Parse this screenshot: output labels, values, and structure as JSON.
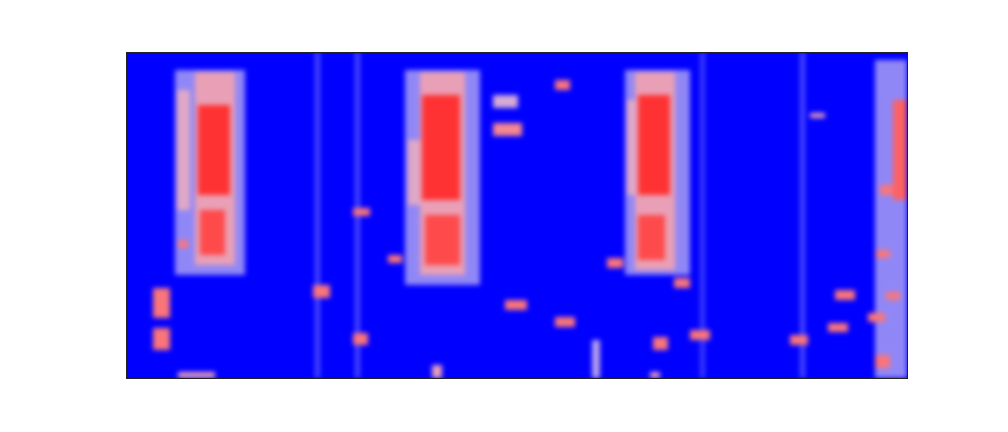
{
  "chart_data": {
    "type": "heatmap",
    "tick_labels": false,
    "xlim": [
      0,
      781
    ],
    "ylim": [
      0,
      326
    ],
    "zlim": [
      0,
      1
    ],
    "cells": [
      {
        "x1": 189,
        "x2": 194,
        "y1": 0,
        "y2": 326,
        "v": 0.15
      },
      {
        "x1": 229,
        "x2": 234,
        "y1": 0,
        "y2": 326,
        "v": 0.15
      },
      {
        "x1": 574,
        "x2": 579,
        "y1": 0,
        "y2": 326,
        "v": 0.12
      },
      {
        "x1": 674,
        "x2": 679,
        "y1": 0,
        "y2": 326,
        "v": 0.15
      },
      {
        "x1": 49,
        "x2": 119,
        "y1": 103,
        "y2": 308,
        "v": 0.3
      },
      {
        "x1": 279,
        "x2": 354,
        "y1": 93,
        "y2": 308,
        "v": 0.3
      },
      {
        "x1": 499,
        "x2": 564,
        "y1": 103,
        "y2": 308,
        "v": 0.3
      },
      {
        "x1": 749,
        "x2": 781,
        "y1": 0,
        "y2": 318,
        "v": 0.3
      },
      {
        "x1": 69,
        "x2": 109,
        "y1": 113,
        "y2": 306,
        "v": 0.6
      },
      {
        "x1": 51,
        "x2": 64,
        "y1": 168,
        "y2": 288,
        "v": 0.55
      },
      {
        "x1": 72,
        "x2": 104,
        "y1": 183,
        "y2": 273,
        "v": 0.9
      },
      {
        "x1": 74,
        "x2": 99,
        "y1": 123,
        "y2": 168,
        "v": 0.85
      },
      {
        "x1": 294,
        "x2": 339,
        "y1": 103,
        "y2": 306,
        "v": 0.6
      },
      {
        "x1": 282,
        "x2": 294,
        "y1": 173,
        "y2": 238,
        "v": 0.55
      },
      {
        "x1": 296,
        "x2": 334,
        "y1": 178,
        "y2": 283,
        "v": 0.9
      },
      {
        "x1": 299,
        "x2": 334,
        "y1": 113,
        "y2": 163,
        "v": 0.85
      },
      {
        "x1": 509,
        "x2": 549,
        "y1": 108,
        "y2": 306,
        "v": 0.6
      },
      {
        "x1": 501,
        "x2": 512,
        "y1": 183,
        "y2": 278,
        "v": 0.55
      },
      {
        "x1": 512,
        "x2": 544,
        "y1": 183,
        "y2": 283,
        "v": 0.9
      },
      {
        "x1": 512,
        "x2": 539,
        "y1": 118,
        "y2": 163,
        "v": 0.85
      },
      {
        "x1": 767,
        "x2": 781,
        "y1": 178,
        "y2": 278,
        "v": 0.8
      },
      {
        "x1": 27,
        "x2": 44,
        "y1": 60,
        "y2": 90,
        "v": 0.75
      },
      {
        "x1": 27,
        "x2": 44,
        "y1": 28,
        "y2": 50,
        "v": 0.75
      },
      {
        "x1": 52,
        "x2": 62,
        "y1": 130,
        "y2": 138,
        "v": 0.75
      },
      {
        "x1": 187,
        "x2": 204,
        "y1": 80,
        "y2": 93,
        "v": 0.75
      },
      {
        "x1": 227,
        "x2": 244,
        "y1": 162,
        "y2": 170,
        "v": 0.75
      },
      {
        "x1": 227,
        "x2": 242,
        "y1": 33,
        "y2": 45,
        "v": 0.75
      },
      {
        "x1": 262,
        "x2": 276,
        "y1": 115,
        "y2": 123,
        "v": 0.75
      },
      {
        "x1": 367,
        "x2": 396,
        "y1": 242,
        "y2": 255,
        "v": 0.7
      },
      {
        "x1": 367,
        "x2": 392,
        "y1": 270,
        "y2": 283,
        "v": 0.5
      },
      {
        "x1": 379,
        "x2": 401,
        "y1": 68,
        "y2": 78,
        "v": 0.75
      },
      {
        "x1": 429,
        "x2": 444,
        "y1": 288,
        "y2": 298,
        "v": 0.75
      },
      {
        "x1": 429,
        "x2": 449,
        "y1": 51,
        "y2": 61,
        "v": 0.75
      },
      {
        "x1": 481,
        "x2": 497,
        "y1": 110,
        "y2": 120,
        "v": 0.75
      },
      {
        "x1": 527,
        "x2": 542,
        "y1": 28,
        "y2": 41,
        "v": 0.75
      },
      {
        "x1": 548,
        "x2": 564,
        "y1": 90,
        "y2": 100,
        "v": 0.75
      },
      {
        "x1": 564,
        "x2": 584,
        "y1": 38,
        "y2": 48,
        "v": 0.75
      },
      {
        "x1": 664,
        "x2": 682,
        "y1": 33,
        "y2": 43,
        "v": 0.75
      },
      {
        "x1": 684,
        "x2": 699,
        "y1": 260,
        "y2": 265,
        "v": 0.6
      },
      {
        "x1": 702,
        "x2": 722,
        "y1": 46,
        "y2": 55,
        "v": 0.75
      },
      {
        "x1": 709,
        "x2": 729,
        "y1": 78,
        "y2": 88,
        "v": 0.75
      },
      {
        "x1": 742,
        "x2": 759,
        "y1": 56,
        "y2": 65,
        "v": 0.75
      },
      {
        "x1": 749,
        "x2": 764,
        "y1": 10,
        "y2": 23,
        "v": 0.75
      },
      {
        "x1": 750,
        "x2": 764,
        "y1": 120,
        "y2": 128,
        "v": 0.75
      },
      {
        "x1": 760,
        "x2": 774,
        "y1": 78,
        "y2": 86,
        "v": 0.75
      },
      {
        "x1": 754,
        "x2": 767,
        "y1": 183,
        "y2": 193,
        "v": 0.75
      },
      {
        "x1": 52,
        "x2": 89,
        "y1": 0,
        "y2": 6,
        "v": 0.6
      },
      {
        "x1": 306,
        "x2": 316,
        "y1": 0,
        "y2": 13,
        "v": 0.6
      },
      {
        "x1": 524,
        "x2": 534,
        "y1": 0,
        "y2": 6,
        "v": 0.6
      },
      {
        "x1": 466,
        "x2": 474,
        "y1": 0,
        "y2": 38,
        "v": 0.4
      }
    ]
  }
}
